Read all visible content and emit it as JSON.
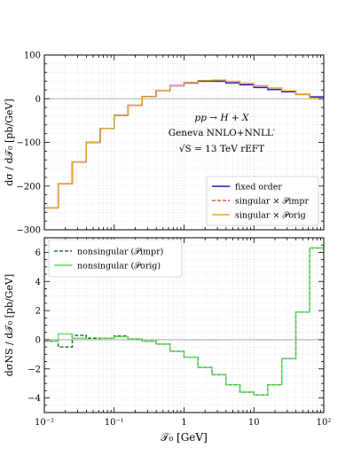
{
  "chart_data": [
    {
      "type": "line",
      "x_scale": "log",
      "xlim": [
        0.01,
        100
      ],
      "ylim": [
        -300,
        100
      ],
      "ylabel": "dσ / d𝒯₀   [pb/GeV]",
      "grid": true,
      "yticks": [
        100,
        0,
        -100,
        -200,
        -300
      ],
      "ytick_labels": [
        "100",
        "0",
        "−100",
        "−200",
        "−300"
      ],
      "annotation": {
        "line1": "pp → H + X",
        "line2": "Geneva NNLO+NNLL′",
        "line3": "√S = 13 TeV    rEFT"
      },
      "legend_position": "lower-right",
      "bin_edges": [
        0.01,
        0.0158,
        0.0251,
        0.0398,
        0.0631,
        0.1,
        0.158,
        0.251,
        0.398,
        0.631,
        1.0,
        1.58,
        2.51,
        3.98,
        6.31,
        10.0,
        15.8,
        25.1,
        39.8,
        63.1,
        100.0
      ],
      "series": [
        {
          "name": "fixed order",
          "color": "#1a1aa6",
          "style": "solid",
          "values": [
            -250,
            -195,
            -145,
            -100,
            -68,
            -38,
            -15,
            5,
            18,
            30,
            36,
            40,
            40,
            36,
            32,
            26,
            21,
            16,
            10,
            4
          ]
        },
        {
          "name": "singular × 𝒫impr",
          "color": "#e8602a",
          "style": "dashed",
          "values": [
            -250,
            -195,
            -145,
            -100,
            -68,
            -38,
            -15,
            5,
            18,
            30,
            37,
            42,
            43,
            40,
            35,
            30,
            25,
            18,
            10,
            0
          ]
        },
        {
          "name": "singular × 𝒫orig",
          "color": "#f5a623",
          "style": "solid",
          "values": [
            -250,
            -195,
            -145,
            -100,
            -68,
            -38,
            -15,
            5,
            18,
            30,
            37,
            42,
            43,
            40,
            35,
            30,
            25,
            18,
            10,
            0
          ]
        }
      ]
    },
    {
      "type": "line",
      "x_scale": "log",
      "xlim": [
        0.01,
        100
      ],
      "ylim": [
        -5,
        7
      ],
      "xlabel": "𝒯₀   [GeV]",
      "ylabel": "dσNS / d𝒯₀   [pb/GeV]",
      "grid": true,
      "yticks": [
        6,
        4,
        2,
        0,
        -2,
        -4
      ],
      "ytick_labels": [
        "6",
        "4",
        "2",
        "0",
        "−2",
        "−4"
      ],
      "xticks": [
        0.01,
        0.1,
        1,
        10,
        100
      ],
      "xtick_labels": [
        "10⁻²",
        "10⁻¹",
        "1",
        "10",
        "10²"
      ],
      "legend_position": "top-left",
      "bin_edges": [
        0.01,
        0.0158,
        0.0251,
        0.0398,
        0.0631,
        0.1,
        0.158,
        0.251,
        0.398,
        0.631,
        1.0,
        1.58,
        2.51,
        3.98,
        6.31,
        10.0,
        15.8,
        25.1,
        39.8,
        63.1,
        100.0
      ],
      "series": [
        {
          "name": "nonsingular (𝒫impr)",
          "color": "#1f7a1f",
          "style": "dashed",
          "values": [
            -0.1,
            -0.5,
            0.3,
            0.1,
            0.1,
            0.25,
            0.05,
            -0.1,
            -0.3,
            -0.8,
            -1.2,
            -1.9,
            -2.4,
            -3.1,
            -3.6,
            -3.8,
            -3.1,
            -1.3,
            1.9,
            6.3
          ]
        },
        {
          "name": "nonsingular (𝒫orig)",
          "color": "#5ad45a",
          "style": "solid",
          "values": [
            -0.1,
            0.4,
            0.1,
            0.0,
            0.1,
            0.2,
            0.05,
            -0.1,
            -0.3,
            -0.8,
            -1.2,
            -1.9,
            -2.4,
            -3.1,
            -3.6,
            -3.8,
            -3.1,
            -1.3,
            1.9,
            6.3
          ]
        }
      ]
    }
  ]
}
